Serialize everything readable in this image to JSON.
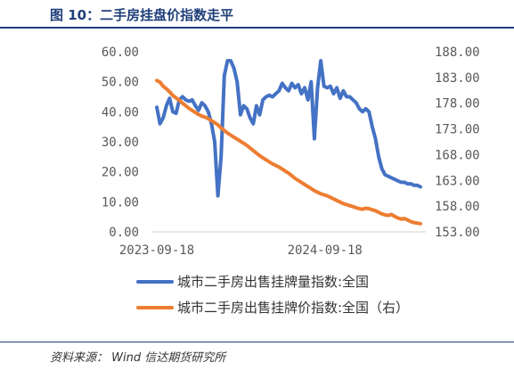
{
  "header": {
    "title": "图 10：二手房挂盘价指数走平"
  },
  "footer": {
    "source": "资料来源：  Wind  信达期货研究所"
  },
  "chart_data": {
    "type": "line",
    "title": "图 10：二手房挂盘价指数走平",
    "x_ticks": [
      "2023-09-18",
      "2024-09-18"
    ],
    "y_left": {
      "range": [
        0,
        60
      ],
      "ticks": [
        "0.00",
        "10.00",
        "20.00",
        "30.00",
        "40.00",
        "50.00",
        "60.00"
      ]
    },
    "y_right": {
      "range": [
        153,
        188
      ],
      "ticks": [
        "153.00",
        "158.00",
        "163.00",
        "168.00",
        "173.00",
        "178.00",
        "183.00",
        "188.00"
      ]
    },
    "legend_position": "bottom",
    "grid": false,
    "series": [
      {
        "name": "城市二手房出售挂牌量指数:全国",
        "axis": "left",
        "color": "#4472C4",
        "x": [
          "2023-09-18",
          "2023-09-25",
          "2023-10-02",
          "2023-10-09",
          "2023-10-16",
          "2023-10-23",
          "2023-10-30",
          "2023-11-06",
          "2023-11-13",
          "2023-11-20",
          "2023-11-27",
          "2023-12-04",
          "2023-12-11",
          "2023-12-18",
          "2023-12-25",
          "2024-01-01",
          "2024-01-08",
          "2024-01-15",
          "2024-01-22",
          "2024-01-29",
          "2024-02-05",
          "2024-02-12",
          "2024-02-19",
          "2024-02-26",
          "2024-03-04",
          "2024-03-11",
          "2024-03-18",
          "2024-03-25",
          "2024-04-01",
          "2024-04-08",
          "2024-04-15",
          "2024-04-22",
          "2024-04-29",
          "2024-05-06",
          "2024-05-13",
          "2024-05-20",
          "2024-05-27",
          "2024-06-03",
          "2024-06-10",
          "2024-06-17",
          "2024-06-24",
          "2024-07-01",
          "2024-07-08",
          "2024-07-15",
          "2024-07-22",
          "2024-07-29",
          "2024-08-05",
          "2024-08-12",
          "2024-08-19",
          "2024-08-26",
          "2024-09-02",
          "2024-09-09",
          "2024-09-16",
          "2024-09-23",
          "2024-09-30",
          "2024-10-07",
          "2024-10-14",
          "2024-10-21",
          "2024-10-28",
          "2024-11-04",
          "2024-11-11",
          "2024-11-18",
          "2024-11-25",
          "2024-12-02",
          "2024-12-09",
          "2024-12-16",
          "2024-12-23",
          "2024-12-30",
          "2025-01-06",
          "2025-01-13",
          "2025-01-20",
          "2025-01-27",
          "2025-02-03",
          "2025-02-10",
          "2025-02-17",
          "2025-02-24",
          "2025-03-03",
          "2025-03-10",
          "2025-03-17",
          "2025-03-24",
          "2025-03-31",
          "2025-04-07",
          "2025-04-14"
        ],
        "values": [
          41.5,
          36.0,
          38.0,
          42.0,
          44.5,
          40.0,
          39.5,
          44.0,
          45.0,
          44.0,
          43.5,
          44.0,
          42.0,
          40.5,
          43.0,
          42.0,
          40.0,
          36.0,
          30.0,
          12.0,
          25.0,
          52.0,
          57.0,
          57.0,
          54.5,
          50.0,
          39.0,
          42.0,
          41.0,
          38.0,
          36.0,
          42.0,
          39.0,
          44.0,
          45.0,
          45.5,
          45.0,
          46.0,
          47.0,
          49.5,
          48.0,
          47.0,
          49.5,
          48.0,
          49.0,
          46.0,
          48.0,
          44.0,
          50.0,
          31.0,
          48.0,
          57.0,
          48.5,
          48.0,
          48.5,
          46.0,
          48.0,
          44.5,
          47.0,
          45.0,
          45.0,
          44.0,
          43.0,
          41.0,
          40.0,
          41.0,
          40.0,
          35.0,
          31.0,
          25.0,
          21.0,
          19.0,
          18.5,
          18.0,
          17.5,
          17.0,
          16.5,
          16.5,
          16.0,
          16.0,
          15.5,
          15.5,
          15.0
        ]
      },
      {
        "name": "城市二手房出售挂牌价指数:全国（右）",
        "axis": "right",
        "color": "#ED7D31",
        "x": [
          "2023-09-18",
          "2023-09-25",
          "2023-10-02",
          "2023-10-09",
          "2023-10-16",
          "2023-10-23",
          "2023-10-30",
          "2023-11-06",
          "2023-11-13",
          "2023-11-20",
          "2023-11-27",
          "2023-12-04",
          "2023-12-11",
          "2023-12-18",
          "2023-12-25",
          "2024-01-01",
          "2024-01-08",
          "2024-01-15",
          "2024-01-22",
          "2024-01-29",
          "2024-02-05",
          "2024-02-12",
          "2024-02-19",
          "2024-02-26",
          "2024-03-04",
          "2024-03-11",
          "2024-03-18",
          "2024-03-25",
          "2024-04-01",
          "2024-04-08",
          "2024-04-15",
          "2024-04-22",
          "2024-04-29",
          "2024-05-06",
          "2024-05-13",
          "2024-05-20",
          "2024-05-27",
          "2024-06-03",
          "2024-06-10",
          "2024-06-17",
          "2024-06-24",
          "2024-07-01",
          "2024-07-08",
          "2024-07-15",
          "2024-07-22",
          "2024-07-29",
          "2024-08-05",
          "2024-08-12",
          "2024-08-19",
          "2024-08-26",
          "2024-09-02",
          "2024-09-09",
          "2024-09-16",
          "2024-09-23",
          "2024-09-30",
          "2024-10-07",
          "2024-10-14",
          "2024-10-21",
          "2024-10-28",
          "2024-11-04",
          "2024-11-11",
          "2024-11-18",
          "2024-11-25",
          "2024-12-02",
          "2024-12-09",
          "2024-12-16",
          "2024-12-23",
          "2024-12-30",
          "2025-01-06",
          "2025-01-13",
          "2025-01-20",
          "2025-01-27",
          "2025-02-03",
          "2025-02-10",
          "2025-02-17",
          "2025-02-24",
          "2025-03-03",
          "2025-03-10",
          "2025-03-17",
          "2025-03-24",
          "2025-03-31",
          "2025-04-07",
          "2025-04-14"
        ],
        "values": [
          182.4,
          182.1,
          181.3,
          180.8,
          180.2,
          179.5,
          179.0,
          178.6,
          178.0,
          177.5,
          177.0,
          176.6,
          176.2,
          175.8,
          175.5,
          175.3,
          175.0,
          174.6,
          174.2,
          173.8,
          173.2,
          172.7,
          172.2,
          171.8,
          171.4,
          171.0,
          170.6,
          170.2,
          169.8,
          169.3,
          168.8,
          168.3,
          167.8,
          167.4,
          167.0,
          166.6,
          166.2,
          165.9,
          165.6,
          165.2,
          164.8,
          164.4,
          163.9,
          163.4,
          163.0,
          162.6,
          162.2,
          161.8,
          161.4,
          161.0,
          160.7,
          160.4,
          160.2,
          160.0,
          159.7,
          159.4,
          159.1,
          158.8,
          158.5,
          158.3,
          158.1,
          157.9,
          157.7,
          157.5,
          157.4,
          157.6,
          157.5,
          157.3,
          157.1,
          156.8,
          156.5,
          156.3,
          156.2,
          156.4,
          156.0,
          155.7,
          155.5,
          155.6,
          155.3,
          155.0,
          154.8,
          154.7,
          154.6
        ]
      }
    ]
  }
}
